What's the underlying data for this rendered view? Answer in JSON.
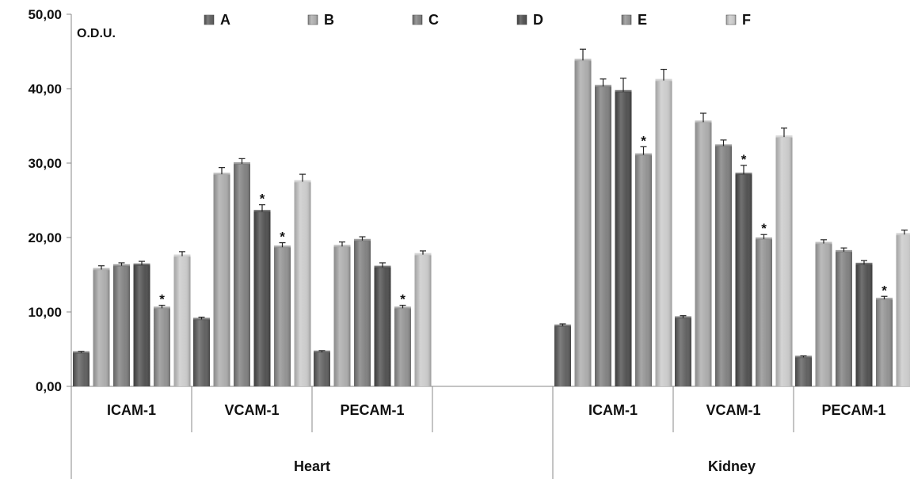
{
  "chart_data": {
    "type": "bar",
    "unit_label": "O.D.U.",
    "ylim": [
      0,
      50
    ],
    "yticks": [
      "0,00",
      "10,00",
      "20,00",
      "30,00",
      "40,00",
      "50,00"
    ],
    "legend_position": "top",
    "series": [
      {
        "name": "A",
        "color": "#5a5a5a"
      },
      {
        "name": "B",
        "color": "#a9a9a9"
      },
      {
        "name": "C",
        "color": "#7c7c7c"
      },
      {
        "name": "D",
        "color": "#4a4a4a"
      },
      {
        "name": "E",
        "color": "#8e8e8e"
      },
      {
        "name": "F",
        "color": "#c8c8c8"
      }
    ],
    "groups": [
      {
        "name": "Heart",
        "categories": [
          {
            "label": "ICAM-1",
            "values": [
              4.5,
              15.7,
              16.2,
              16.3,
              10.5,
              17.5
            ],
            "errors": [
              0.2,
              0.5,
              0.4,
              0.5,
              0.4,
              0.6
            ],
            "sig": [
              false,
              false,
              false,
              false,
              true,
              false
            ]
          },
          {
            "label": "VCAM-1",
            "values": [
              9.0,
              28.5,
              29.9,
              23.5,
              18.7,
              27.5
            ],
            "errors": [
              0.3,
              0.9,
              0.7,
              0.9,
              0.6,
              1.0
            ],
            "sig": [
              false,
              false,
              false,
              true,
              true,
              false
            ]
          },
          {
            "label": "PECAM-1",
            "values": [
              4.6,
              18.8,
              19.6,
              16.0,
              10.5,
              17.7
            ],
            "errors": [
              0.2,
              0.6,
              0.5,
              0.6,
              0.4,
              0.5
            ],
            "sig": [
              false,
              false,
              false,
              false,
              true,
              false
            ]
          }
        ]
      },
      {
        "name": "Kidney",
        "categories": [
          {
            "label": "ICAM-1",
            "values": [
              8.1,
              43.8,
              40.3,
              39.6,
              31.1,
              41.1
            ],
            "errors": [
              0.3,
              1.5,
              1.0,
              1.8,
              1.1,
              1.5
            ],
            "sig": [
              false,
              false,
              false,
              false,
              true,
              false
            ]
          },
          {
            "label": "VCAM-1",
            "values": [
              9.2,
              35.5,
              32.3,
              28.5,
              19.8,
              33.5
            ],
            "errors": [
              0.3,
              1.2,
              0.8,
              1.2,
              0.6,
              1.2
            ],
            "sig": [
              false,
              false,
              false,
              true,
              true,
              false
            ]
          },
          {
            "label": "PECAM-1",
            "values": [
              3.9,
              19.2,
              18.1,
              16.4,
              11.7,
              20.4
            ],
            "errors": [
              0.2,
              0.5,
              0.5,
              0.5,
              0.4,
              0.6
            ],
            "sig": [
              false,
              false,
              false,
              false,
              true,
              false
            ]
          }
        ]
      }
    ],
    "significance_marker": "*"
  }
}
